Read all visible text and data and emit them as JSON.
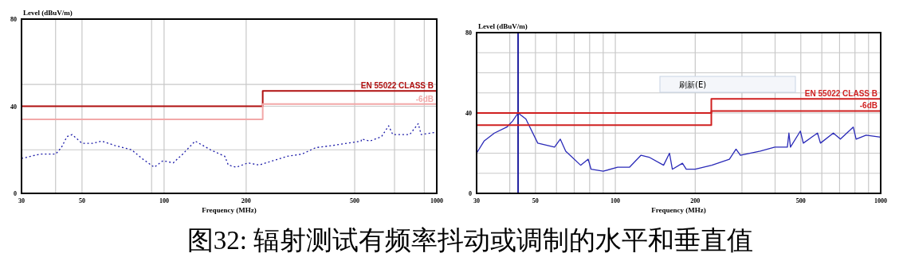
{
  "chart_data": [
    {
      "type": "line",
      "ylabel": "Level (dBuV/m)",
      "xlabel": "Frequency (MHz)",
      "log": "x",
      "xlim": [
        30,
        1000
      ],
      "ylim": [
        0,
        80
      ],
      "xticks": [
        30,
        {
          "value": 40,
          "label": null
        },
        50,
        {
          "value": 90,
          "label": null
        },
        100,
        200,
        500,
        {
          "value": 700,
          "label": null
        },
        {
          "value": 900,
          "label": null
        },
        1000
      ],
      "yticks": [
        0,
        {
          "value": 20,
          "label": null
        },
        40,
        {
          "value": 50,
          "label": null
        },
        80
      ],
      "grid": true,
      "annotations": [
        "图32: 辐射测试有频率抖动或调制的水平和垂直值"
      ],
      "series": [
        {
          "type": "line",
          "color": "#1a1aa8",
          "line_style": "dotted",
          "x": [
            30,
            35,
            40,
            42,
            44,
            46,
            50,
            55,
            59,
            66,
            76,
            83,
            92,
            99,
            108,
            117,
            130,
            148,
            167,
            172,
            184,
            203,
            223,
            251,
            283,
            320,
            360,
            417,
            469,
            528,
            530,
            569,
            627,
            666,
            690,
            796,
            855,
            877,
            990
          ],
          "values": [
            16,
            18,
            18,
            21,
            26,
            27,
            23,
            23,
            24,
            22,
            20,
            16,
            12,
            15,
            14,
            18,
            24,
            20,
            17,
            13,
            12,
            14,
            13,
            15,
            17,
            18,
            21,
            22,
            23,
            24,
            25,
            24,
            26,
            31,
            27,
            27,
            32,
            27,
            28
          ]
        },
        {
          "type": "step",
          "name": "EN 55022 CLASS B",
          "color": "#b01010",
          "x": [
            30,
            230,
            1000
          ],
          "values": [
            40,
            47,
            47
          ]
        },
        {
          "type": "step",
          "name": "-6dB",
          "color": "#f2a8a8",
          "x": [
            30,
            230,
            1000
          ],
          "values": [
            34,
            41,
            41
          ]
        }
      ]
    },
    {
      "type": "line",
      "ylabel": "Level (dBuV/m)",
      "xlabel": "Frequency (MHz)",
      "log": "x",
      "xlim": [
        30,
        1000
      ],
      "ylim": [
        0,
        80
      ],
      "xticks": [
        30,
        {
          "value": 40,
          "label": null
        },
        50,
        {
          "value": 60,
          "label": null
        },
        {
          "value": 70,
          "label": null
        },
        {
          "value": 80,
          "label": null
        },
        {
          "value": 90,
          "label": null
        },
        100,
        200,
        {
          "value": 300,
          "label": null
        },
        {
          "value": 400,
          "label": null
        },
        500,
        {
          "value": 600,
          "label": null
        },
        {
          "value": 700,
          "label": null
        },
        {
          "value": 800,
          "label": null
        },
        {
          "value": 900,
          "label": null
        },
        1000
      ],
      "yticks": [
        0,
        {
          "value": 10,
          "label": null
        },
        {
          "value": 20,
          "label": null
        },
        {
          "value": 30,
          "label": null
        },
        40,
        {
          "value": 50,
          "label": null
        },
        {
          "value": 60,
          "label": null
        },
        {
          "value": 70,
          "label": null
        },
        80
      ],
      "grid": true,
      "annotations": [
        "刷新(E)"
      ],
      "ref_lines": [
        {
          "axis": "x",
          "value": 43,
          "color": "#2020a0"
        }
      ],
      "series": [
        {
          "type": "line",
          "color": "#2a2ab8",
          "x": [
            30,
            32,
            35,
            39,
            41,
            43,
            46,
            51,
            59,
            62,
            65,
            74,
            79,
            81,
            90,
            102,
            113,
            125,
            134,
            152,
            160,
            164,
            179,
            185,
            200,
            231,
            269,
            285,
            296,
            352,
            399,
            445,
            451,
            457,
            498,
            511,
            550,
            578,
            593,
            663,
            705,
            788,
            808,
            881,
            1000
          ],
          "values": [
            20,
            26,
            30,
            33,
            36,
            40,
            37,
            25,
            23,
            27,
            21,
            14,
            17,
            12,
            11,
            13,
            13,
            19,
            18,
            14,
            20,
            12,
            15,
            12,
            12,
            14,
            17,
            22,
            19,
            21,
            23,
            23,
            30,
            23,
            31,
            25,
            28,
            30,
            25,
            30,
            27,
            33,
            27,
            29,
            28
          ]
        },
        {
          "type": "step",
          "name": "EN 55022 CLASS B",
          "color": "#d02020",
          "x": [
            30,
            230,
            1000
          ],
          "values": [
            40,
            47,
            47
          ]
        },
        {
          "type": "step",
          "name": "-6dB",
          "color": "#d02020",
          "x": [
            30,
            230,
            1000
          ],
          "values": [
            34,
            41,
            41
          ]
        }
      ]
    }
  ]
}
